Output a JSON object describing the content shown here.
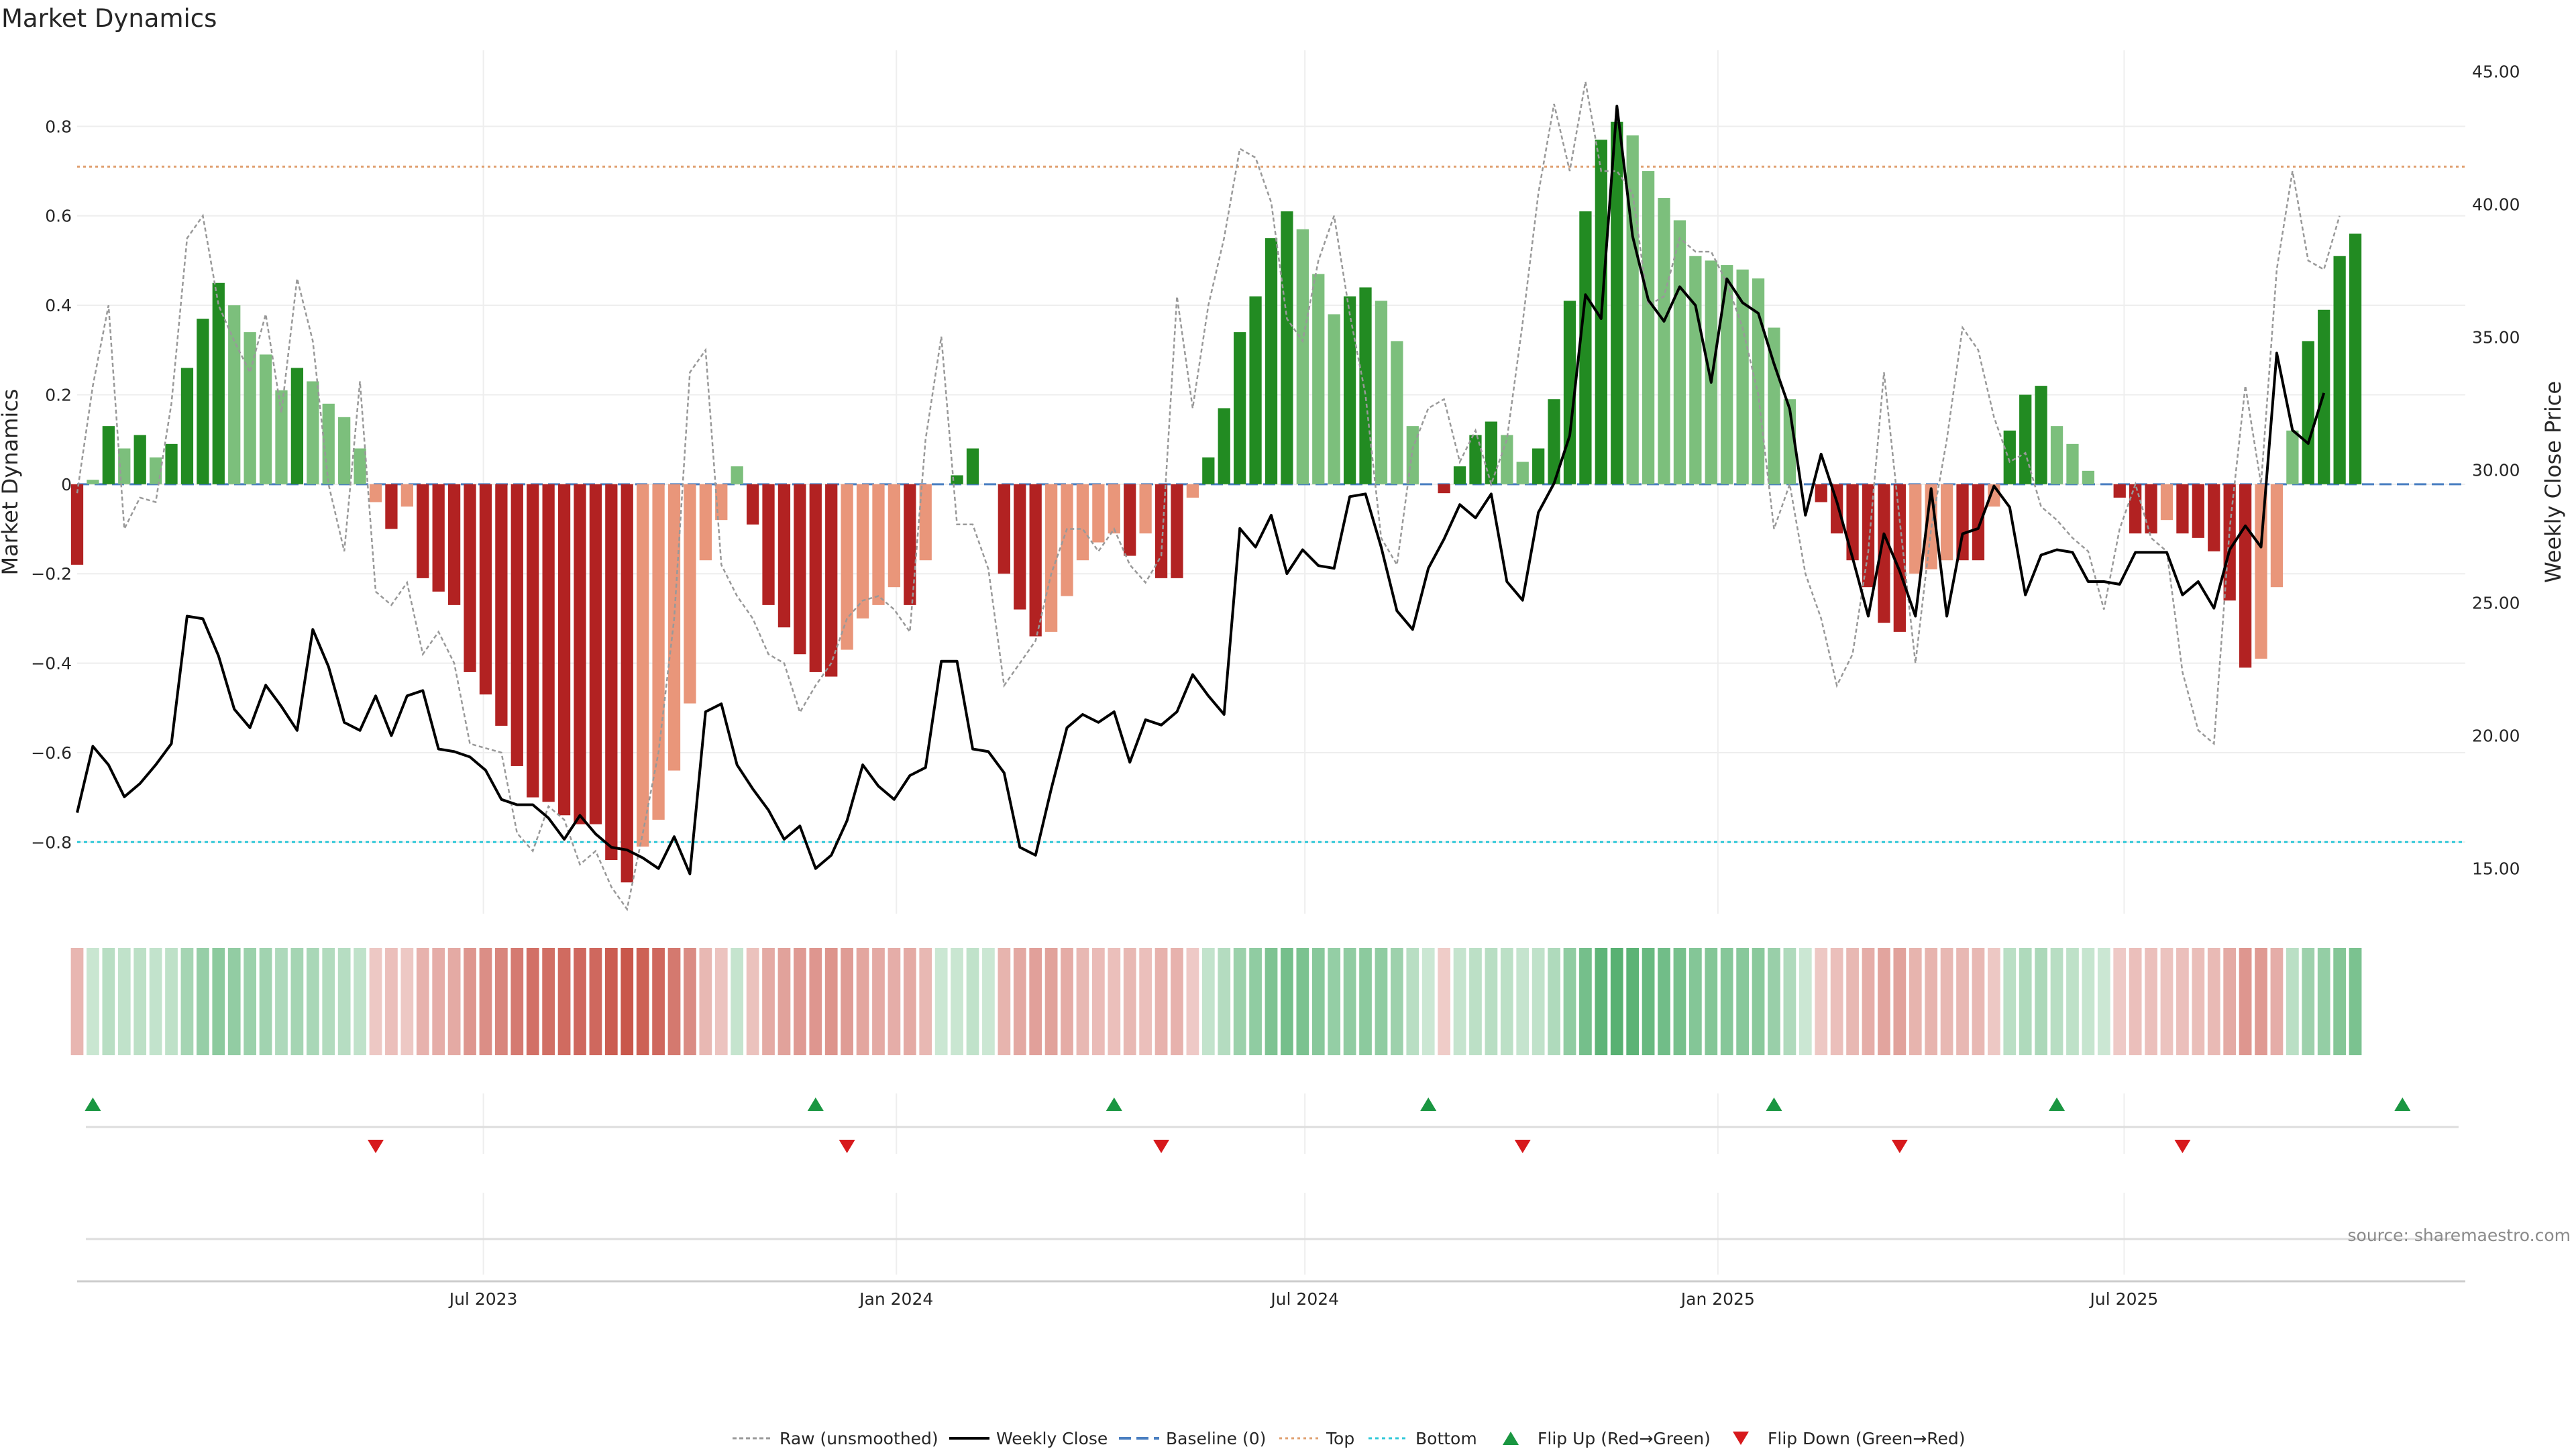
{
  "chart_data": {
    "type": "bar",
    "title": "Market Dynamics",
    "ylabel": "Market Dynamics",
    "y2label": "Weekly Close Price",
    "ylim": [
      -0.96,
      0.97
    ],
    "y2lim": [
      13.3,
      45.8
    ],
    "yticks": [
      -0.8,
      -0.6,
      -0.4,
      -0.2,
      0,
      0.2,
      0.4,
      0.6,
      0.8
    ],
    "ytick_labels": [
      "−0.8",
      "−0.6",
      "−0.4",
      "−0.2",
      "0",
      "0.2",
      "0.4",
      "0.6",
      "0.8"
    ],
    "y2ticks": [
      15,
      20,
      25,
      30,
      35,
      40,
      45
    ],
    "y2tick_labels": [
      "15.00",
      "20.00",
      "25.00",
      "30.00",
      "35.00",
      "40.00",
      "45.00"
    ],
    "x_start": "2023-01-01",
    "x_end": "2025-11-30",
    "xticks": [
      "2023-07-01",
      "2024-01-01",
      "2024-07-01",
      "2025-01-01",
      "2025-07-01"
    ],
    "xtick_labels": [
      "Jul 2023",
      "Jan 2024",
      "Jul 2024",
      "Jan 2025",
      "Jul 2025"
    ],
    "top_level": 0.71,
    "bottom_level": -0.8,
    "grid": true,
    "legend_position": "bottom-center",
    "series": [
      {
        "name": "Market Dynamics (weekly)",
        "kind": "bar",
        "start": "2023-01-01",
        "step_days": 7,
        "values": [
          -0.18,
          0.01,
          0.13,
          0.08,
          0.11,
          0.06,
          0.09,
          0.26,
          0.37,
          0.45,
          0.4,
          0.34,
          0.29,
          0.21,
          0.26,
          0.23,
          0.18,
          0.15,
          0.08,
          -0.04,
          -0.1,
          -0.05,
          -0.21,
          -0.24,
          -0.27,
          -0.42,
          -0.47,
          -0.54,
          -0.63,
          -0.7,
          -0.71,
          -0.74,
          -0.76,
          -0.76,
          -0.84,
          -0.89,
          -0.81,
          -0.75,
          -0.64,
          -0.49,
          -0.17,
          -0.08,
          0.04,
          -0.09,
          -0.27,
          -0.32,
          -0.38,
          -0.42,
          -0.43,
          -0.37,
          -0.3,
          -0.27,
          -0.23,
          -0.27,
          -0.17,
          0.0,
          0.02,
          0.08,
          0.0,
          -0.2,
          -0.28,
          -0.34,
          -0.33,
          -0.25,
          -0.17,
          -0.13,
          -0.11,
          -0.16,
          -0.11,
          -0.21,
          -0.21,
          -0.03,
          0.06,
          0.17,
          0.34,
          0.42,
          0.55,
          0.61,
          0.57,
          0.47,
          0.38,
          0.42,
          0.44,
          0.41,
          0.32,
          0.13,
          0.0,
          -0.02,
          0.04,
          0.11,
          0.14,
          0.11,
          0.05,
          0.08,
          0.19,
          0.41,
          0.61,
          0.77,
          0.81,
          0.78,
          0.7,
          0.64,
          0.59,
          0.51,
          0.5,
          0.49,
          0.48,
          0.46,
          0.35,
          0.19,
          0.0,
          -0.04,
          -0.11,
          -0.17,
          -0.23,
          -0.31,
          -0.33,
          -0.2,
          -0.19,
          -0.17,
          -0.17,
          -0.17,
          -0.05,
          0.12,
          0.2,
          0.22,
          0.13,
          0.09,
          0.03,
          0.0,
          -0.03,
          -0.11,
          -0.11,
          -0.08,
          -0.11,
          -0.12,
          -0.15,
          -0.26,
          -0.41,
          -0.39,
          -0.23,
          0.12,
          0.32,
          0.39,
          0.51,
          0.56
        ]
      },
      {
        "name": "Raw (unsmoothed)",
        "kind": "line",
        "start": "2023-01-01",
        "step_days": 7,
        "values": [
          -0.02,
          0.22,
          0.4,
          -0.1,
          -0.03,
          -0.04,
          0.18,
          0.55,
          0.6,
          0.4,
          0.32,
          0.25,
          0.38,
          0.16,
          0.46,
          0.32,
          0.0,
          -0.15,
          0.23,
          -0.24,
          -0.27,
          -0.22,
          -0.38,
          -0.33,
          -0.4,
          -0.58,
          -0.59,
          -0.6,
          -0.78,
          -0.82,
          -0.72,
          -0.75,
          -0.85,
          -0.82,
          -0.9,
          -0.95,
          -0.78,
          -0.6,
          -0.3,
          0.25,
          0.3,
          -0.18,
          -0.25,
          -0.3,
          -0.38,
          -0.4,
          -0.51,
          -0.45,
          -0.4,
          -0.3,
          -0.26,
          -0.25,
          -0.28,
          -0.33,
          0.1,
          0.33,
          -0.09,
          -0.09,
          -0.19,
          -0.45,
          -0.4,
          -0.35,
          -0.2,
          -0.1,
          -0.1,
          -0.15,
          -0.1,
          -0.18,
          -0.22,
          -0.16,
          0.42,
          0.17,
          0.4,
          0.55,
          0.75,
          0.73,
          0.63,
          0.37,
          0.32,
          0.5,
          0.6,
          0.38,
          0.2,
          -0.12,
          -0.18,
          0.08,
          0.17,
          0.19,
          0.05,
          0.12,
          0.0,
          0.1,
          0.36,
          0.65,
          0.85,
          0.7,
          0.9,
          0.7,
          0.7,
          0.65,
          0.4,
          0.42,
          0.55,
          0.52,
          0.52,
          0.45,
          0.35,
          0.2,
          -0.1,
          0.0,
          -0.2,
          -0.3,
          -0.45,
          -0.38,
          -0.15,
          0.25,
          -0.08,
          -0.4,
          -0.1,
          0.1,
          0.35,
          0.3,
          0.15,
          0.05,
          0.07,
          -0.05,
          -0.08,
          -0.12,
          -0.15,
          -0.28,
          -0.1,
          0.0,
          -0.12,
          -0.15,
          -0.42,
          -0.55,
          -0.58,
          -0.1,
          0.22,
          0.0,
          0.48,
          0.7,
          0.5,
          0.48,
          0.6
        ]
      },
      {
        "name": "Weekly Close",
        "kind": "line",
        "axis": "right",
        "start": "2023-01-01",
        "step_days": 7,
        "values": [
          17.1,
          19.6,
          18.9,
          17.7,
          18.2,
          18.9,
          19.7,
          24.5,
          24.4,
          23.0,
          21.0,
          20.3,
          21.9,
          21.1,
          20.2,
          24.0,
          22.6,
          20.5,
          20.2,
          21.5,
          20.0,
          21.5,
          21.7,
          19.5,
          19.4,
          19.2,
          18.7,
          17.6,
          17.4,
          17.4,
          16.9,
          16.1,
          17.0,
          16.3,
          15.8,
          15.7,
          15.4,
          15.0,
          16.2,
          14.8,
          20.9,
          21.2,
          18.9,
          18.0,
          17.2,
          16.1,
          16.6,
          15.0,
          15.5,
          16.8,
          18.9,
          18.1,
          17.6,
          18.5,
          18.8,
          22.8,
          22.8,
          19.5,
          19.4,
          18.6,
          15.8,
          15.5,
          18.0,
          20.3,
          20.8,
          20.5,
          20.9,
          19.0,
          20.6,
          20.4,
          20.9,
          22.3,
          21.5,
          20.8,
          27.8,
          27.1,
          28.3,
          26.1,
          27.0,
          26.4,
          26.3,
          29.0,
          29.1,
          27.1,
          24.7,
          24.0,
          26.3,
          27.4,
          28.7,
          28.2,
          29.1,
          25.8,
          25.1,
          28.4,
          29.5,
          31.3,
          36.6,
          35.7,
          43.7,
          38.8,
          36.4,
          35.6,
          36.9,
          36.2,
          33.3,
          37.2,
          36.3,
          35.9,
          34.0,
          32.3,
          28.3,
          30.6,
          28.8,
          26.7,
          24.5,
          27.6,
          26.2,
          24.5,
          29.3,
          24.5,
          27.6,
          27.8,
          29.4,
          28.6,
          25.3,
          26.8,
          27.0,
          26.9,
          25.8,
          25.8,
          25.7,
          26.9,
          26.9,
          26.9,
          25.3,
          25.8,
          24.8,
          27.0,
          27.9,
          27.1,
          34.4,
          31.5,
          31.0,
          32.9
        ]
      }
    ],
    "regime_strip": {
      "start": "2023-01-01",
      "step_days": 7,
      "intensity": "abs(bar value)",
      "positive_color": "#2e9e4f",
      "negative_color": "#c0392b"
    },
    "flip_up_dates": [
      "2023-01-08",
      "2023-11-26",
      "2024-04-07",
      "2024-08-25",
      "2025-01-26",
      "2025-06-01",
      "2025-11-02"
    ],
    "flip_down_dates": [
      "2023-05-14",
      "2023-12-10",
      "2024-04-28",
      "2024-10-06",
      "2025-03-23",
      "2025-07-27"
    ],
    "legend": [
      "Raw (unsmoothed)",
      "Weekly Close",
      "Baseline (0)",
      "Top",
      "Bottom",
      "Flip Up (Red→Green)",
      "Flip Down (Green→Red)"
    ],
    "source_note": "source: sharemaestro.com",
    "colors": {
      "bar_pos_strong": "#228b22",
      "bar_pos_weak": "#7cbf7c",
      "bar_neg_strong": "#b22222",
      "bar_neg_weak": "#e9967a",
      "raw_line": "#999999",
      "close_line": "#000000",
      "baseline": "#4a7fc1",
      "top_line": "#e0a070",
      "bottom_line": "#30c8d8",
      "flip_up": "#1a9641",
      "flip_down": "#d7191c",
      "grid": "#eeeeee"
    }
  }
}
